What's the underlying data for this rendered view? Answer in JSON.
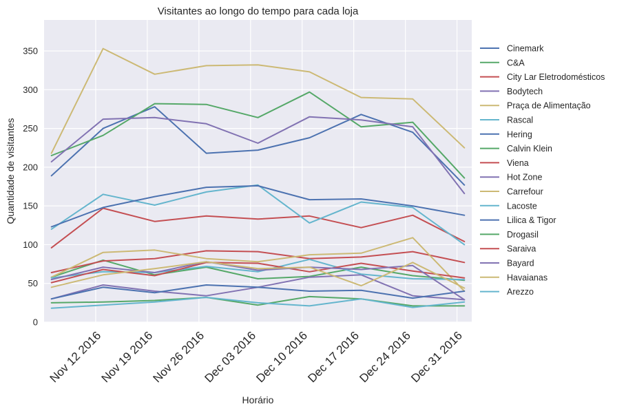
{
  "chart_data": {
    "type": "line",
    "title": "Visitantes ao longo do tempo para cada loja",
    "xlabel": "Horário",
    "ylabel": "Quantidade de visitantes",
    "ylim": [
      0,
      390
    ],
    "yticks": [
      0,
      50,
      100,
      150,
      200,
      250,
      300,
      350
    ],
    "xlim": [
      "2016-11-05",
      "2017-01-02"
    ],
    "xticks": [
      {
        "date": "2016-11-12",
        "label": "Nov 12 2016"
      },
      {
        "date": "2016-11-19",
        "label": "Nov 19 2016"
      },
      {
        "date": "2016-11-26",
        "label": "Nov 26 2016"
      },
      {
        "date": "2016-12-03",
        "label": "Dec 03 2016"
      },
      {
        "date": "2016-12-10",
        "label": "Dec 10 2016"
      },
      {
        "date": "2016-12-17",
        "label": "Dec 17 2016"
      },
      {
        "date": "2016-12-24",
        "label": "Dec 24 2016"
      },
      {
        "date": "2016-12-31",
        "label": "Dec 31 2016"
      }
    ],
    "x": [
      "2016-11-06",
      "2016-11-13",
      "2016-11-20",
      "2016-11-27",
      "2016-12-04",
      "2016-12-11",
      "2016-12-18",
      "2016-12-25",
      "2017-01-01"
    ],
    "grid": true,
    "legend_position": "right-outside",
    "series": [
      {
        "name": "Cinemark",
        "color": "#4C72B0",
        "values": [
          189,
          250,
          278,
          218,
          222,
          238,
          268,
          245,
          177
        ]
      },
      {
        "name": "C&A",
        "color": "#55A868",
        "values": [
          215,
          241,
          282,
          281,
          264,
          297,
          252,
          258,
          186
        ]
      },
      {
        "name": "City Lar Eletrodomésticos",
        "color": "#C44E52",
        "values": [
          96,
          147,
          130,
          137,
          133,
          137,
          122,
          138,
          104
        ]
      },
      {
        "name": "Bodytech",
        "color": "#8172B2",
        "values": [
          207,
          262,
          264,
          256,
          231,
          265,
          261,
          252,
          166
        ]
      },
      {
        "name": "Praça de Alimentação",
        "color": "#CCB974",
        "values": [
          218,
          353,
          320,
          331,
          332,
          323,
          290,
          288,
          225
        ]
      },
      {
        "name": "Rascal",
        "color": "#64B5CD",
        "values": [
          120,
          165,
          151,
          168,
          177,
          128,
          155,
          148,
          100
        ]
      },
      {
        "name": "Hering",
        "color": "#4C72B0",
        "values": [
          123,
          148,
          162,
          174,
          176,
          158,
          159,
          150,
          138
        ]
      },
      {
        "name": "Calvin Klein",
        "color": "#55A868",
        "values": [
          58,
          80,
          61,
          71,
          56,
          59,
          71,
          60,
          54
        ]
      },
      {
        "name": "Viena",
        "color": "#C44E52",
        "values": [
          64,
          79,
          82,
          92,
          91,
          82,
          84,
          91,
          77
        ]
      },
      {
        "name": "Hot Zone",
        "color": "#8172B2",
        "values": [
          30,
          48,
          40,
          34,
          45,
          58,
          61,
          34,
          29
        ]
      },
      {
        "name": "Carrefour",
        "color": "#CCB974",
        "values": [
          58,
          90,
          93,
          82,
          78,
          87,
          89,
          109,
          40
        ]
      },
      {
        "name": "Lacoste",
        "color": "#64B5CD",
        "values": [
          57,
          65,
          64,
          72,
          65,
          81,
          62,
          56,
          55
        ]
      },
      {
        "name": "Lilica & Tigor",
        "color": "#4C72B0",
        "values": [
          30,
          45,
          38,
          48,
          45,
          40,
          41,
          31,
          40
        ]
      },
      {
        "name": "Drogasil",
        "color": "#55A868",
        "values": [
          25,
          26,
          28,
          32,
          22,
          33,
          30,
          21,
          21
        ]
      },
      {
        "name": "Saraiva",
        "color": "#C44E52",
        "values": [
          51,
          68,
          60,
          77,
          76,
          65,
          76,
          66,
          57
        ]
      },
      {
        "name": "Bayard",
        "color": "#8172B2",
        "values": [
          55,
          71,
          64,
          78,
          67,
          71,
          68,
          73,
          29
        ]
      },
      {
        "name": "Havaianas",
        "color": "#CCB974",
        "values": [
          45,
          61,
          69,
          78,
          69,
          71,
          47,
          77,
          44
        ]
      },
      {
        "name": "Arezzo",
        "color": "#64B5CD",
        "values": [
          18,
          22,
          26,
          32,
          25,
          21,
          30,
          19,
          26
        ]
      }
    ]
  }
}
